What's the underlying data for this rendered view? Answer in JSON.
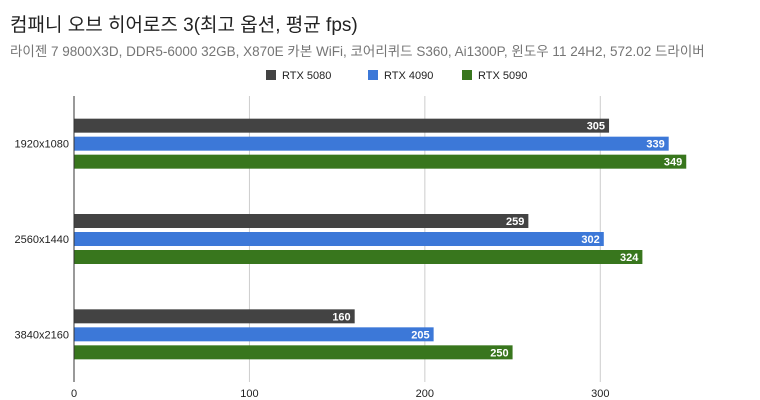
{
  "chart_data": {
    "type": "bar",
    "orientation": "horizontal",
    "title": "컴패니 오브 히어로즈 3(최고 옵션, 평균 fps)",
    "subtitle": "라이젠 7 9800X3D, DDR5-6000 32GB, X870E 카본 WiFi, 코어리퀴드 S360, Ai1300P, 윈도우 11 24H2, 572.02 드라이버",
    "categories": [
      "1920x1080",
      "2560x1440",
      "3840x2160"
    ],
    "series": [
      {
        "name": "RTX 5080",
        "color": "#434343",
        "values": [
          305,
          259,
          160
        ]
      },
      {
        "name": "RTX 4090",
        "color": "#3c78d8",
        "values": [
          339,
          302,
          205
        ]
      },
      {
        "name": "RTX 5090",
        "color": "#38761d",
        "values": [
          349,
          324,
          250
        ]
      }
    ],
    "xlim": [
      0,
      350
    ],
    "xticks": [
      "0",
      "100",
      "200",
      "300"
    ],
    "xtick_values": [
      0,
      100,
      200,
      300
    ],
    "xlabel": "",
    "ylabel": "",
    "grid": true,
    "legend_position": "top"
  }
}
